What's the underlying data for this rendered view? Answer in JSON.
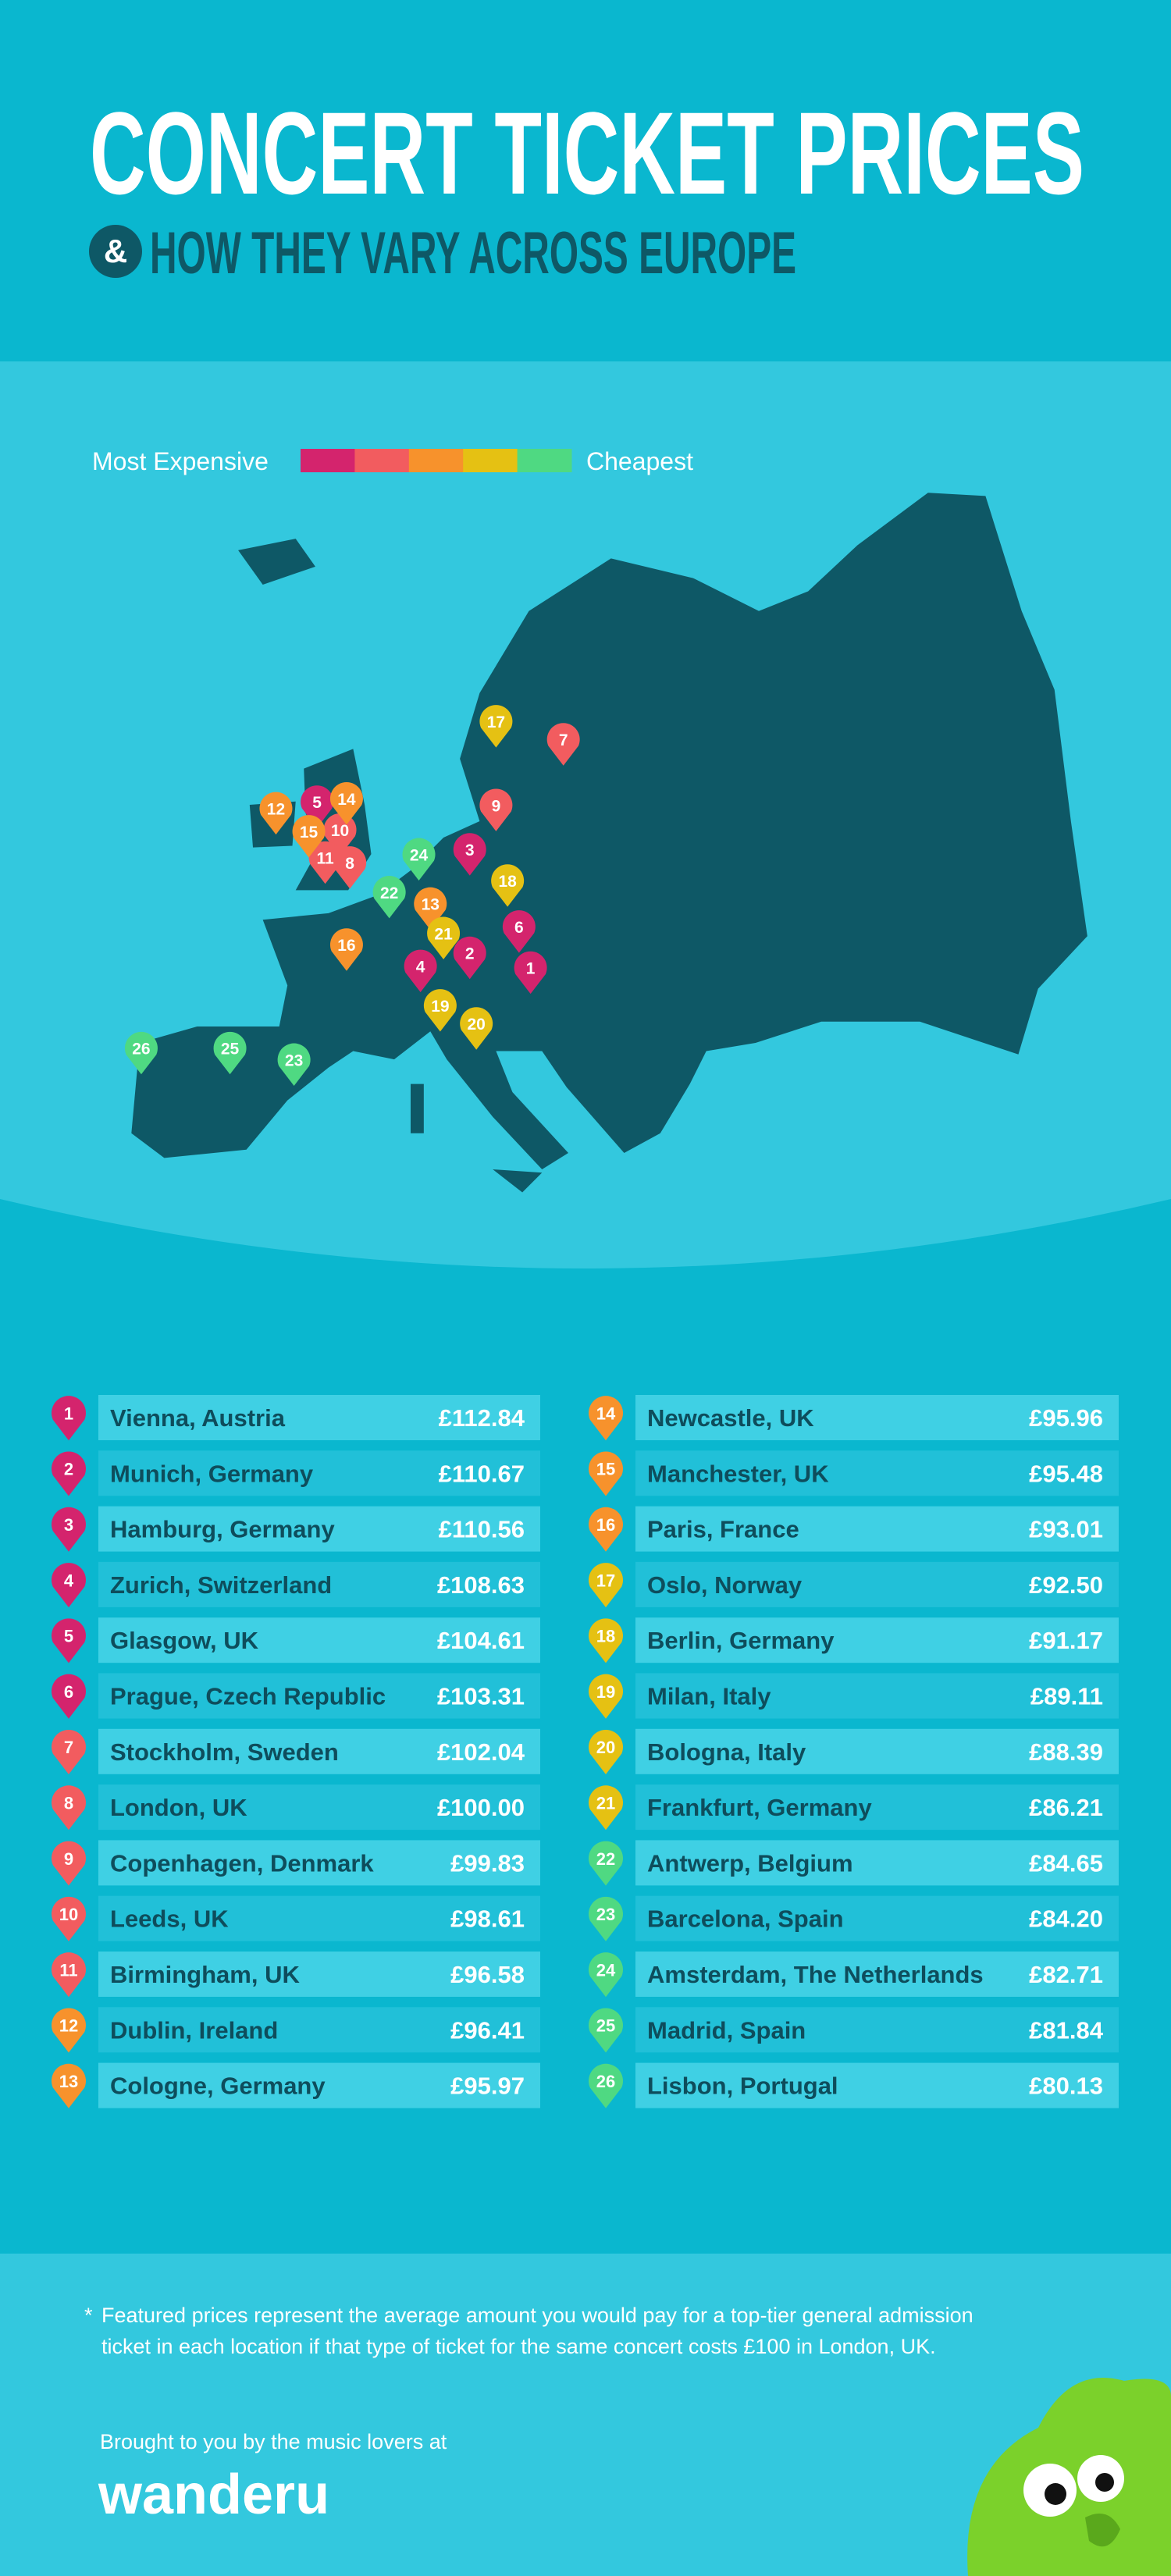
{
  "header": {
    "title": "CONCERT TICKET PRICES",
    "ampersand": "&",
    "subtitle": "HOW THEY VARY ACROSS EUROPE"
  },
  "legend": {
    "start": "Most Expensive",
    "end": "Cheapest",
    "colors": [
      "#d4246d",
      "#f25c5f",
      "#f7922c",
      "#e5c113",
      "#4fd982"
    ]
  },
  "rankings": [
    {
      "rank": 1,
      "city": "Vienna, Austria",
      "price": "£112.84",
      "color": "#d4246d"
    },
    {
      "rank": 2,
      "city": "Munich, Germany",
      "price": "£110.67",
      "color": "#d4246d"
    },
    {
      "rank": 3,
      "city": "Hamburg, Germany",
      "price": "£110.56",
      "color": "#d4246d"
    },
    {
      "rank": 4,
      "city": "Zurich, Switzerland",
      "price": "£108.63",
      "color": "#d4246d"
    },
    {
      "rank": 5,
      "city": "Glasgow, UK",
      "price": "£104.61",
      "color": "#d4246d"
    },
    {
      "rank": 6,
      "city": "Prague, Czech Republic",
      "price": "£103.31",
      "color": "#d4246d"
    },
    {
      "rank": 7,
      "city": "Stockholm, Sweden",
      "price": "£102.04",
      "color": "#f25c5f"
    },
    {
      "rank": 8,
      "city": "London, UK",
      "price": "£100.00",
      "color": "#f25c5f"
    },
    {
      "rank": 9,
      "city": "Copenhagen, Denmark",
      "price": "£99.83",
      "color": "#f25c5f"
    },
    {
      "rank": 10,
      "city": "Leeds, UK",
      "price": "£98.61",
      "color": "#f25c5f"
    },
    {
      "rank": 11,
      "city": "Birmingham, UK",
      "price": "£96.58",
      "color": "#f25c5f"
    },
    {
      "rank": 12,
      "city": "Dublin, Ireland",
      "price": "£96.41",
      "color": "#f7922c"
    },
    {
      "rank": 13,
      "city": "Cologne, Germany",
      "price": "£95.97",
      "color": "#f7922c"
    },
    {
      "rank": 14,
      "city": "Newcastle, UK",
      "price": "£95.96",
      "color": "#f7922c"
    },
    {
      "rank": 15,
      "city": "Manchester, UK",
      "price": "£95.48",
      "color": "#f7922c"
    },
    {
      "rank": 16,
      "city": "Paris, France",
      "price": "£93.01",
      "color": "#f7922c"
    },
    {
      "rank": 17,
      "city": "Oslo, Norway",
      "price": "£92.50",
      "color": "#e5c113"
    },
    {
      "rank": 18,
      "city": "Berlin, Germany",
      "price": "£91.17",
      "color": "#e5c113"
    },
    {
      "rank": 19,
      "city": "Milan, Italy",
      "price": "£89.11",
      "color": "#e5c113"
    },
    {
      "rank": 20,
      "city": "Bologna, Italy",
      "price": "£88.39",
      "color": "#e5c113"
    },
    {
      "rank": 21,
      "city": "Frankfurt, Germany",
      "price": "£86.21",
      "color": "#e5c113"
    },
    {
      "rank": 22,
      "city": "Antwerp, Belgium",
      "price": "£84.65",
      "color": "#4fd982"
    },
    {
      "rank": 23,
      "city": "Barcelona, Spain",
      "price": "£84.20",
      "color": "#4fd982"
    },
    {
      "rank": 24,
      "city": "Amsterdam, The Netherlands",
      "price": "£82.71",
      "color": "#4fd982"
    },
    {
      "rank": 25,
      "city": "Madrid, Spain",
      "price": "£81.84",
      "color": "#4fd982"
    },
    {
      "rank": 26,
      "city": "Lisbon, Portugal",
      "price": "£80.13",
      "color": "#4fd982"
    }
  ],
  "footnote": {
    "marker": "*",
    "lines": [
      "Featured prices represent the average amount you would pay for a top-tier general admission",
      "ticket in each location if that type of ticket for the same concert costs £100 in London, UK."
    ]
  },
  "footer": {
    "credit": "Brought to you by the music lovers at",
    "brand": "wanderu"
  }
}
